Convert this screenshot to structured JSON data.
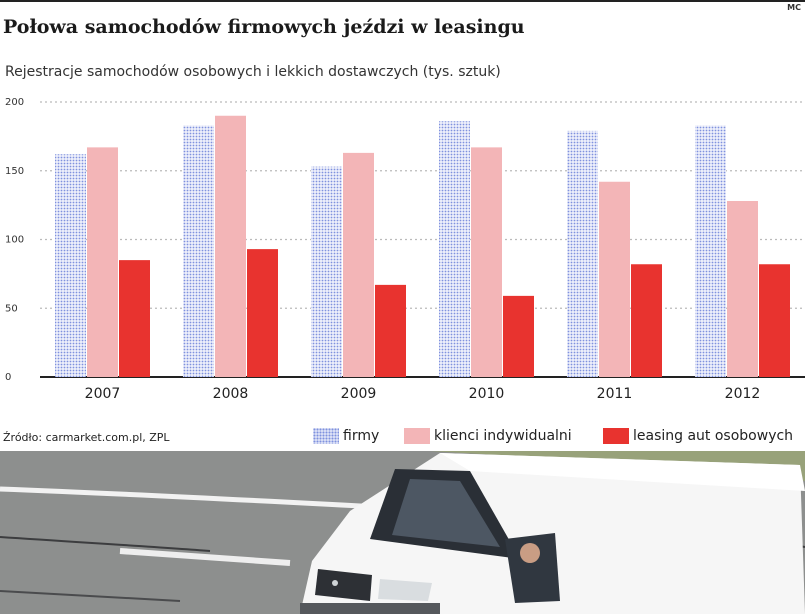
{
  "header": {
    "corner_mark": "MC",
    "title": "Połowa samochodów firmowych jeździ w leasingu",
    "subtitle": "Rejestracje samochodów osobowych i lekkich dostawczych (tys. sztuk)"
  },
  "footer": {
    "source": "Źródło: carmarket.com.pl, ZPL"
  },
  "colors": {
    "firmy": "#8fa3e6",
    "klienci": "#f3b5b7",
    "leasing": "#e8332f",
    "grid": "#bbbbbb"
  },
  "chart_data": {
    "type": "bar",
    "title": "Rejestracje samochodów osobowych i lekkich dostawczych (tys. sztuk)",
    "categories": [
      "2007",
      "2008",
      "2009",
      "2010",
      "2011",
      "2012"
    ],
    "series": [
      {
        "name": "firmy",
        "values": [
          162,
          183,
          153,
          186,
          179,
          183
        ]
      },
      {
        "name": "klienci indywidualni",
        "values": [
          167,
          190,
          163,
          167,
          142,
          128
        ]
      },
      {
        "name": "leasing aut osobowych",
        "values": [
          85,
          93,
          67,
          59,
          82,
          82
        ]
      }
    ],
    "yticks": [
      "0",
      "50",
      "100",
      "150",
      "200"
    ],
    "ylim": [
      0,
      200
    ],
    "grid": true,
    "legend": "bottom-right"
  },
  "photo": {
    "description_icon": "white-van-photo"
  }
}
